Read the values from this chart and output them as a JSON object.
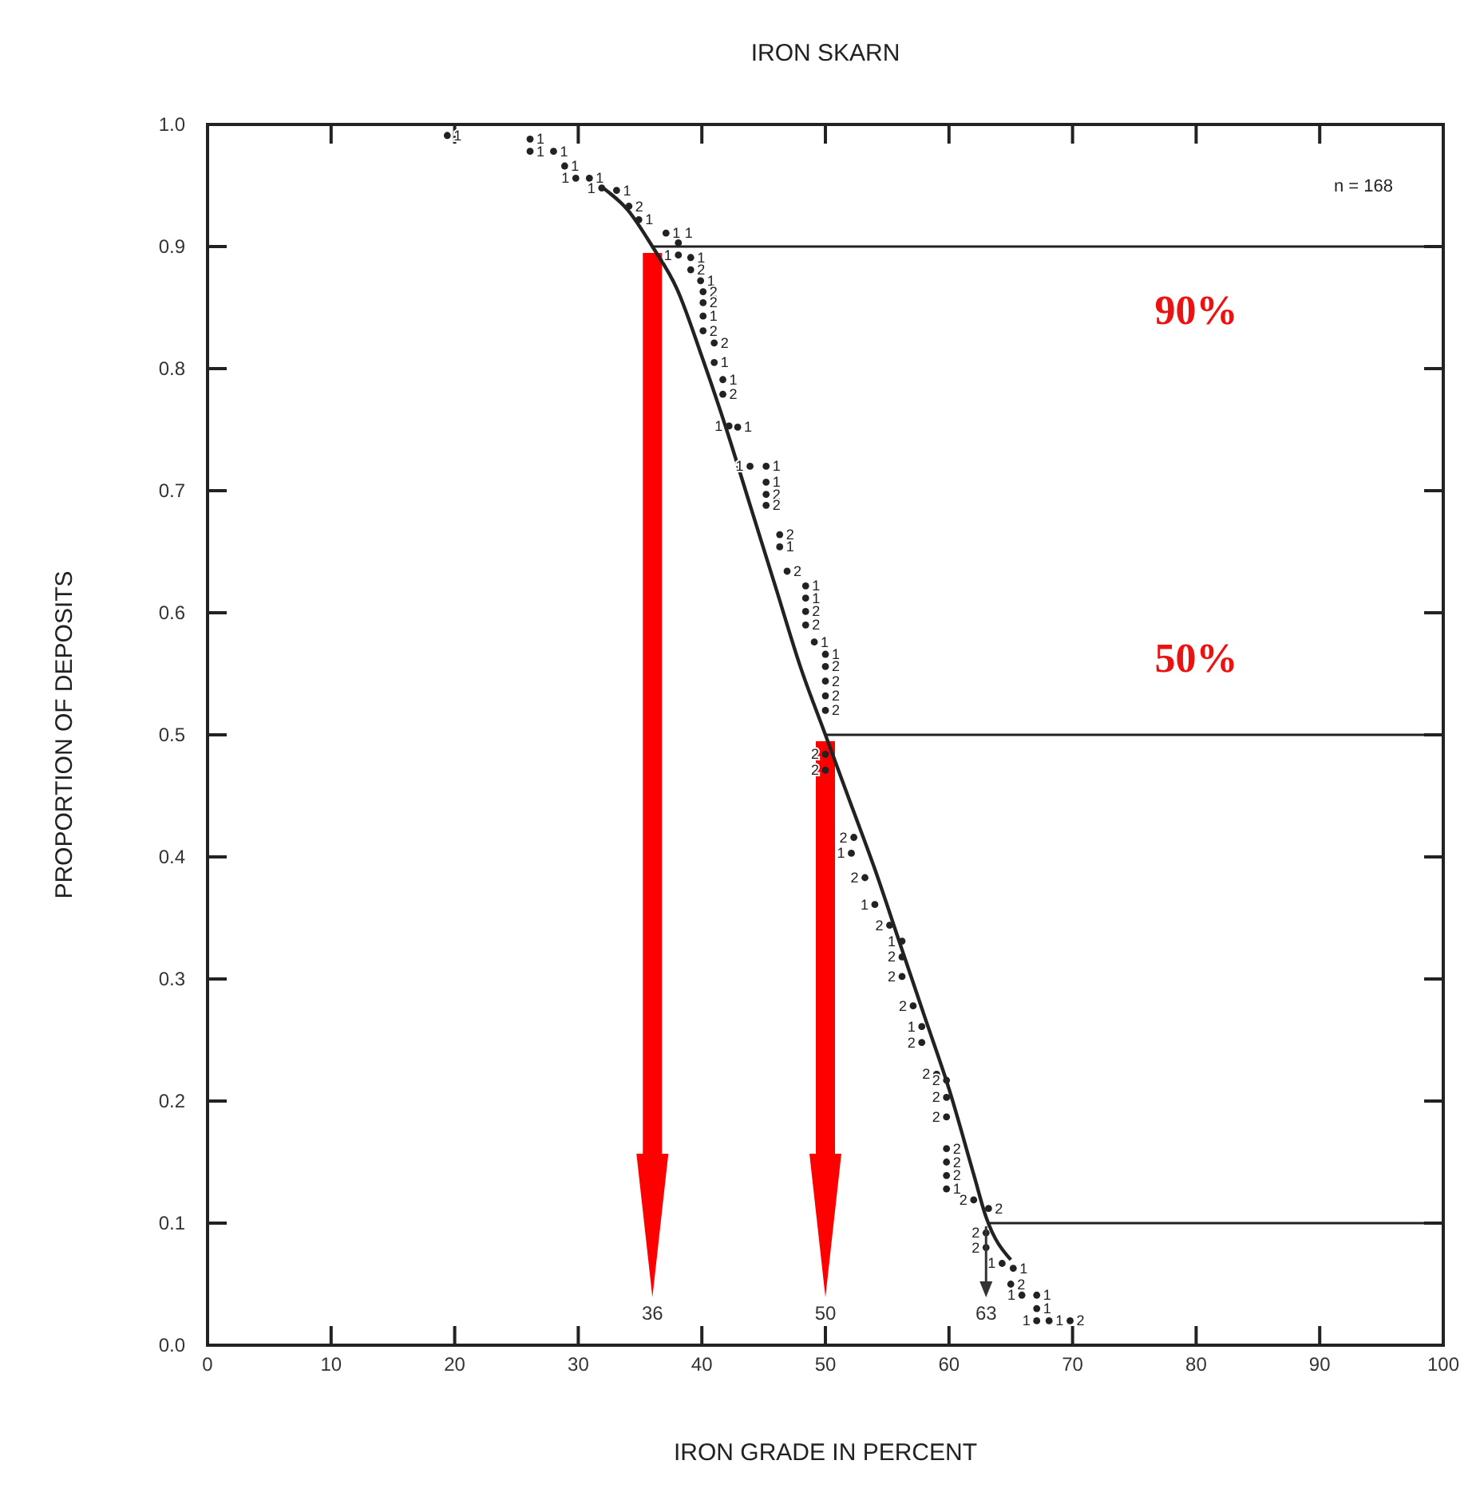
{
  "chart_data": {
    "type": "line",
    "title": "IRON SKARN",
    "xlabel": "IRON GRADE IN PERCENT",
    "ylabel": "PROPORTION OF DEPOSITS",
    "xlim": [
      0,
      100
    ],
    "xticks": [
      0,
      10,
      20,
      30,
      40,
      50,
      60,
      70,
      80,
      90,
      100
    ],
    "ylim": [
      0,
      1
    ],
    "yticks": [
      {
        "value": 0,
        "label": "0.0"
      },
      {
        "value": 0.1,
        "label": "0.1"
      },
      {
        "value": 0.2,
        "label": "0.2"
      },
      {
        "value": 0.3,
        "label": "0.3"
      },
      {
        "value": 0.4,
        "label": "0.4"
      },
      {
        "value": 0.5,
        "label": "0.5"
      },
      {
        "value": 0.6,
        "label": "0.6"
      },
      {
        "value": 0.7,
        "label": "0.7"
      },
      {
        "value": 0.8,
        "label": "0.8"
      },
      {
        "value": 0.9,
        "label": "0.9"
      },
      {
        "value": 1,
        "label": "1.0"
      }
    ],
    "grid": false,
    "series": [
      {
        "color": "#222222",
        "marker": "none",
        "line_style": "solid",
        "x": [
          32,
          34,
          36,
          38,
          40,
          42,
          44,
          46,
          48,
          50,
          52,
          54,
          56,
          58,
          60,
          62,
          63,
          65
        ],
        "values": [
          0.948,
          0.93,
          0.9,
          0.865,
          0.81,
          0.75,
          0.685,
          0.62,
          0.555,
          0.5,
          0.445,
          0.39,
          0.33,
          0.27,
          0.21,
          0.14,
          0.105,
          0.07
        ]
      },
      {
        "type": "scatter",
        "name": "1",
        "color": "#222222",
        "marker": "circle",
        "x": [
          19.4,
          26.1,
          26.1,
          28.0,
          28.9,
          29.8,
          30.9,
          31.9,
          33.1,
          34.9,
          37.1,
          38.1,
          38.1,
          39.1,
          39.9,
          40.1,
          41.0,
          41.7,
          42.2,
          42.9,
          43.9,
          45.2,
          45.2,
          46.3,
          48.4,
          48.4,
          49.1,
          50.0,
          52.1,
          54.0,
          56.2,
          57.8,
          59.8,
          64.3,
          65.2,
          65.9,
          67.1,
          67.1,
          67.1,
          68.1
        ],
        "values": [
          0.991,
          0.988,
          0.978,
          0.978,
          0.966,
          0.956,
          0.956,
          0.948,
          0.946,
          0.922,
          0.911,
          0.903,
          0.893,
          0.891,
          0.872,
          0.843,
          0.805,
          0.791,
          0.753,
          0.752,
          0.72,
          0.72,
          0.707,
          0.654,
          0.622,
          0.612,
          0.576,
          0.566,
          0.403,
          0.361,
          0.331,
          0.261,
          0.128,
          0.067,
          0.063,
          0.041,
          0.041,
          0.03,
          0.02,
          0.02
        ]
      },
      {
        "type": "scatter",
        "name": "2",
        "color": "#222222",
        "marker": "circle",
        "x": [
          34.1,
          39.1,
          40.1,
          40.1,
          40.1,
          41.0,
          41.7,
          45.2,
          45.2,
          46.3,
          46.9,
          48.4,
          48.4,
          50.0,
          50.0,
          50.0,
          50.0,
          50.0,
          50.0,
          52.3,
          53.2,
          55.2,
          56.2,
          56.2,
          57.1,
          57.8,
          59.0,
          59.8,
          59.8,
          59.8,
          59.8,
          59.8,
          59.8,
          62.0,
          63.2,
          63.0,
          63.0,
          65.0,
          69.8
        ],
        "values": [
          0.933,
          0.881,
          0.863,
          0.854,
          0.831,
          0.821,
          0.779,
          0.697,
          0.688,
          0.664,
          0.634,
          0.601,
          0.59,
          0.556,
          0.544,
          0.532,
          0.52,
          0.484,
          0.471,
          0.416,
          0.383,
          0.344,
          0.318,
          0.302,
          0.278,
          0.248,
          0.222,
          0.217,
          0.203,
          0.187,
          0.161,
          0.15,
          0.139,
          0.119,
          0.112,
          0.092,
          0.08,
          0.05,
          0.02
        ]
      }
    ],
    "ref_lines": [
      {
        "axis": "y",
        "value": 0.9,
        "color": "#222222",
        "label": "90%"
      },
      {
        "axis": "y",
        "value": 0.5,
        "color": "#222222",
        "label": "50%"
      },
      {
        "axis": "y",
        "value": 0.1,
        "color": "#222222"
      }
    ],
    "annotations": [
      "n = 168",
      "36",
      "50",
      {
        "text": "63",
        "x": 63,
        "y": 0.1
      }
    ]
  }
}
